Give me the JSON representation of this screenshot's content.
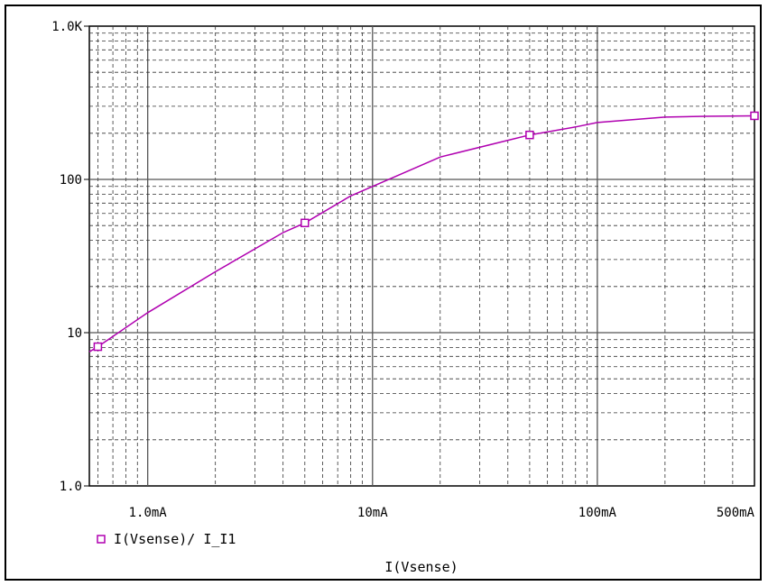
{
  "chart_data": {
    "type": "line",
    "x_scale": "log",
    "y_scale": "log",
    "xlabel": "I(Vsense)",
    "ylabel": "",
    "xlim": [
      0.00055,
      0.5
    ],
    "ylim": [
      1,
      1000
    ],
    "grid": true,
    "legend_position": "bottom-left",
    "x_tick_labels": [
      "1.0mA",
      "10mA",
      "100mA",
      "500mA"
    ],
    "x_ticks": [
      0.001,
      0.01,
      0.1,
      0.5
    ],
    "y_tick_labels": [
      "1.0",
      "10",
      "100",
      "1.0K"
    ],
    "y_ticks": [
      1,
      10,
      100,
      1000
    ],
    "series": [
      {
        "name": "I(Vsense)/ I_I1",
        "color": "#b000b0",
        "marker": "square",
        "x": [
          0.00055,
          0.0006,
          0.001,
          0.002,
          0.004,
          0.005,
          0.008,
          0.01,
          0.02,
          0.04,
          0.05,
          0.08,
          0.1,
          0.2,
          0.3,
          0.5
        ],
        "y": [
          7.5,
          8.1,
          13.5,
          25,
          45,
          52,
          78,
          90,
          140,
          180,
          195,
          220,
          235,
          255,
          258,
          260
        ],
        "marker_x": [
          0.0006,
          0.005,
          0.05,
          0.5
        ],
        "marker_y": [
          8.1,
          52,
          195,
          260
        ]
      }
    ]
  }
}
